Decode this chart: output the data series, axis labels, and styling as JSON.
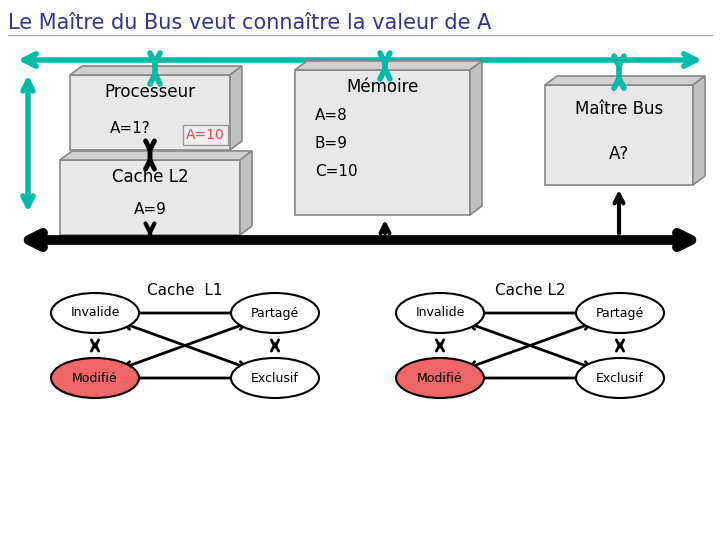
{
  "title": "Le Maître du Bus veut connaître la valeur de A",
  "title_color": "#333399",
  "bg_color": "#FFFFFF",
  "teal": "#00BBAA",
  "processeur_text": [
    "Processeur",
    "A=1?"
  ],
  "a10_text": "A=10",
  "a10_color": "#FF4444",
  "cache_l2_text": [
    "Cache L2",
    "A=9"
  ],
  "memoire_text": [
    "Mémoire",
    "A=8",
    "B=9",
    "C=10"
  ],
  "maitre_text": [
    "Maître Bus",
    "A?"
  ],
  "cache_l1_label": "Cache  L1",
  "cache_l2_label": "Cache L2",
  "box_face": "#E8E8E8",
  "box_top": "#D0D0D0",
  "box_right": "#C0C0C0",
  "box_edge": "#999999"
}
